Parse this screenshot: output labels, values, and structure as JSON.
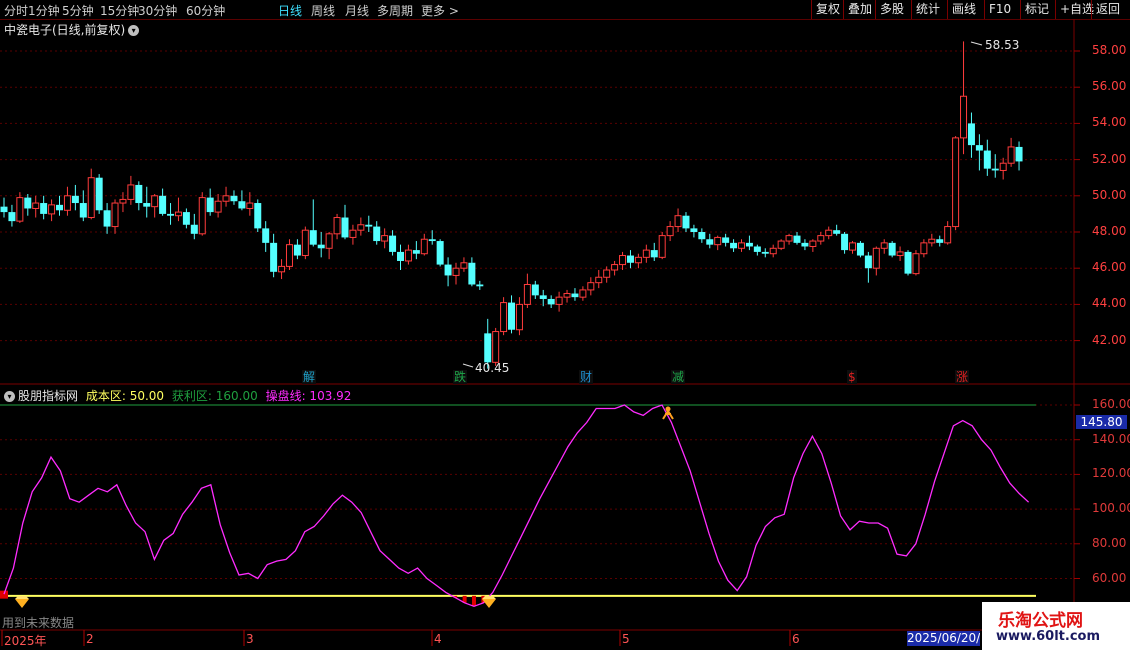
{
  "period_tabs": [
    {
      "label": "分时",
      "active": false
    },
    {
      "label": "1分钟",
      "active": false
    },
    {
      "label": "5分钟",
      "active": false
    },
    {
      "label": "15分钟",
      "active": false
    },
    {
      "label": "30分钟",
      "active": false
    },
    {
      "label": "60分钟",
      "active": false
    },
    {
      "label": "日线",
      "active": true
    },
    {
      "label": "周线",
      "active": false
    },
    {
      "label": "月线",
      "active": false
    },
    {
      "label": "多周期",
      "active": false
    },
    {
      "label": "更多 >",
      "active": false
    }
  ],
  "toolbar": [
    "复权",
    "叠加",
    "多股",
    "统计",
    "画线",
    "F10",
    "标记",
    "+自选",
    "返回"
  ],
  "chart_title": {
    "text": "中瓷电子(日线,前复权)",
    "icon": "chevron-down-icon"
  },
  "price_axis": [
    "58.00",
    "56.00",
    "54.00",
    "52.00",
    "50.00",
    "48.00",
    "46.00",
    "44.00",
    "42.00"
  ],
  "price_annotations": {
    "high": "58.53",
    "low": "40.45"
  },
  "markers": [
    {
      "text": "解",
      "color": "#1ea0c8"
    },
    {
      "text": "跌",
      "color": "#1ea84a"
    },
    {
      "text": "财",
      "color": "#1e8fd0"
    },
    {
      "text": "减",
      "color": "#1ea84a"
    },
    {
      "text": "$",
      "color": "#e02020"
    },
    {
      "text": "涨",
      "color": "#e02020"
    }
  ],
  "indicator": {
    "name": "股朋指标网",
    "cost_label": "成本区: 50.00",
    "profit_label": "获利区: 160.00",
    "line_label": "操盘线: 103.92",
    "current_value": "145.80"
  },
  "indicator_axis": [
    "160.00",
    "140.00",
    "120.00",
    "100.00",
    "80.00",
    "60.00"
  ],
  "x_axis": [
    "2025年",
    "2",
    "3",
    "4",
    "5",
    "6"
  ],
  "current_date": "2025/06/20/五",
  "future_note": "用到未来数据",
  "watermark": {
    "line1": "乐淘公式网",
    "line2": "www.60lt.com"
  },
  "colors": {
    "up": "#ff3c3c",
    "down": "#54ffff",
    "indicator": "#ff2cff",
    "cost_line": "#ffff60",
    "profit_line": "#1f9f3f"
  },
  "chart_data": [
    {
      "type": "candlestick",
      "title": "中瓷电子(日线,前复权)",
      "ylim": [
        40.5,
        59.5
      ],
      "y_ticks": [
        42,
        44,
        46,
        48,
        50,
        52,
        54,
        56,
        58
      ],
      "x_labels": [
        "2025年",
        "2",
        "3",
        "4",
        "5",
        "6"
      ],
      "ohlc": [
        [
          49.4,
          49.9,
          48.8,
          49.1
        ],
        [
          49.1,
          49.5,
          48.3,
          48.6
        ],
        [
          48.6,
          50.2,
          48.5,
          49.9
        ],
        [
          49.9,
          50.1,
          48.9,
          49.3
        ],
        [
          49.3,
          50.0,
          48.8,
          49.6
        ],
        [
          49.6,
          50.0,
          48.7,
          49.0
        ],
        [
          49.0,
          49.8,
          48.6,
          49.5
        ],
        [
          49.5,
          50.0,
          48.9,
          49.2
        ],
        [
          49.2,
          50.5,
          48.9,
          50.0
        ],
        [
          50.0,
          50.6,
          49.2,
          49.6
        ],
        [
          49.6,
          50.3,
          48.6,
          48.8
        ],
        [
          48.8,
          51.5,
          48.7,
          51.0
        ],
        [
          51.0,
          51.2,
          49.0,
          49.2
        ],
        [
          49.2,
          49.6,
          47.9,
          48.3
        ],
        [
          48.3,
          49.8,
          47.9,
          49.6
        ],
        [
          49.6,
          50.2,
          49.1,
          49.8
        ],
        [
          49.8,
          51.1,
          49.5,
          50.6
        ],
        [
          50.6,
          50.8,
          49.2,
          49.6
        ],
        [
          49.6,
          50.5,
          48.8,
          49.4
        ],
        [
          49.4,
          50.1,
          48.8,
          50.0
        ],
        [
          50.0,
          50.4,
          48.9,
          49.0
        ],
        [
          49.0,
          49.6,
          48.4,
          48.9
        ],
        [
          48.9,
          49.9,
          48.6,
          49.1
        ],
        [
          49.1,
          49.3,
          48.2,
          48.4
        ],
        [
          48.4,
          49.0,
          47.6,
          47.9
        ],
        [
          47.9,
          50.2,
          47.8,
          49.9
        ],
        [
          49.9,
          50.4,
          48.9,
          49.1
        ],
        [
          49.1,
          50.1,
          48.8,
          49.7
        ],
        [
          49.7,
          50.5,
          49.4,
          50.0
        ],
        [
          50.0,
          50.3,
          49.5,
          49.7
        ],
        [
          49.7,
          50.3,
          49.2,
          49.3
        ],
        [
          49.3,
          50.2,
          48.9,
          49.6
        ],
        [
          49.6,
          49.8,
          48.0,
          48.2
        ],
        [
          48.2,
          48.6,
          46.9,
          47.4
        ],
        [
          47.4,
          47.9,
          45.5,
          45.8
        ],
        [
          45.8,
          46.5,
          45.4,
          46.1
        ],
        [
          46.1,
          47.6,
          45.9,
          47.3
        ],
        [
          47.3,
          47.6,
          46.5,
          46.7
        ],
        [
          46.7,
          48.3,
          46.5,
          48.1
        ],
        [
          48.1,
          49.8,
          47.2,
          47.3
        ],
        [
          47.3,
          48.0,
          46.6,
          47.1
        ],
        [
          47.1,
          48.0,
          46.5,
          47.9
        ],
        [
          47.9,
          49.0,
          47.6,
          48.8
        ],
        [
          48.8,
          49.5,
          47.6,
          47.7
        ],
        [
          47.7,
          48.4,
          47.3,
          48.1
        ],
        [
          48.1,
          48.8,
          47.8,
          48.4
        ],
        [
          48.4,
          48.9,
          48.0,
          48.3
        ],
        [
          48.3,
          48.6,
          47.3,
          47.5
        ],
        [
          47.5,
          48.2,
          47.1,
          47.8
        ],
        [
          47.8,
          48.1,
          46.7,
          46.9
        ],
        [
          46.9,
          47.3,
          45.9,
          46.4
        ],
        [
          46.4,
          47.3,
          46.2,
          47.0
        ],
        [
          47.0,
          47.5,
          46.5,
          46.8
        ],
        [
          46.8,
          47.9,
          46.7,
          47.6
        ],
        [
          47.6,
          48.1,
          47.3,
          47.5
        ],
        [
          47.5,
          47.6,
          46.1,
          46.2
        ],
        [
          46.2,
          46.6,
          45.0,
          45.6
        ],
        [
          45.6,
          46.3,
          45.1,
          46.0
        ],
        [
          46.0,
          46.6,
          45.8,
          46.3
        ],
        [
          46.3,
          46.6,
          45.0,
          45.1
        ],
        [
          45.1,
          45.3,
          44.8,
          45.0
        ],
        [
          42.4,
          43.2,
          40.45,
          40.8
        ],
        [
          40.8,
          42.7,
          40.6,
          42.5
        ],
        [
          42.5,
          44.4,
          42.3,
          44.1
        ],
        [
          44.1,
          44.5,
          42.4,
          42.6
        ],
        [
          42.6,
          44.4,
          42.3,
          44.0
        ],
        [
          44.0,
          45.7,
          43.8,
          45.1
        ],
        [
          45.1,
          45.3,
          44.3,
          44.5
        ],
        [
          44.5,
          44.8,
          43.9,
          44.3
        ],
        [
          44.3,
          44.5,
          43.8,
          44.0
        ],
        [
          44.0,
          44.7,
          43.6,
          44.4
        ],
        [
          44.4,
          44.8,
          44.1,
          44.6
        ],
        [
          44.6,
          44.9,
          44.2,
          44.4
        ],
        [
          44.4,
          45.0,
          44.2,
          44.8
        ],
        [
          44.8,
          45.5,
          44.5,
          45.2
        ],
        [
          45.2,
          45.9,
          44.9,
          45.5
        ],
        [
          45.5,
          46.1,
          45.2,
          45.9
        ],
        [
          45.9,
          46.4,
          45.6,
          46.2
        ],
        [
          46.2,
          46.9,
          45.9,
          46.7
        ],
        [
          46.7,
          47.0,
          46.0,
          46.3
        ],
        [
          46.3,
          46.8,
          46.0,
          46.6
        ],
        [
          46.6,
          47.3,
          46.3,
          47.0
        ],
        [
          47.0,
          47.4,
          46.4,
          46.6
        ],
        [
          46.6,
          48.0,
          46.5,
          47.8
        ],
        [
          47.8,
          48.6,
          47.5,
          48.3
        ],
        [
          48.3,
          49.3,
          48.0,
          48.9
        ],
        [
          48.9,
          49.1,
          48.0,
          48.2
        ],
        [
          48.2,
          48.4,
          47.7,
          48.0
        ],
        [
          48.0,
          48.2,
          47.4,
          47.6
        ],
        [
          47.6,
          47.9,
          47.1,
          47.3
        ],
        [
          47.3,
          47.8,
          47.0,
          47.7
        ],
        [
          47.7,
          47.9,
          47.2,
          47.4
        ],
        [
          47.4,
          47.6,
          46.9,
          47.1
        ],
        [
          47.1,
          47.6,
          46.9,
          47.4
        ],
        [
          47.4,
          47.8,
          47.0,
          47.2
        ],
        [
          47.2,
          47.3,
          46.7,
          46.9
        ],
        [
          46.9,
          47.1,
          46.6,
          46.8
        ],
        [
          46.8,
          47.3,
          46.6,
          47.1
        ],
        [
          47.1,
          47.6,
          47.0,
          47.5
        ],
        [
          47.5,
          47.9,
          47.3,
          47.8
        ],
        [
          47.8,
          48.0,
          47.3,
          47.4
        ],
        [
          47.4,
          47.6,
          47.0,
          47.2
        ],
        [
          47.2,
          47.6,
          46.9,
          47.5
        ],
        [
          47.5,
          48.0,
          47.3,
          47.8
        ],
        [
          47.8,
          48.3,
          47.6,
          48.1
        ],
        [
          48.1,
          48.4,
          47.8,
          47.9
        ],
        [
          47.9,
          48.0,
          46.8,
          47.0
        ],
        [
          47.0,
          47.5,
          46.8,
          47.4
        ],
        [
          47.4,
          47.5,
          46.6,
          46.7
        ],
        [
          46.7,
          46.9,
          45.2,
          46.0
        ],
        [
          46.0,
          47.2,
          45.6,
          47.1
        ],
        [
          47.1,
          47.6,
          46.8,
          47.4
        ],
        [
          47.4,
          47.5,
          46.6,
          46.7
        ],
        [
          46.7,
          47.2,
          46.4,
          46.9
        ],
        [
          46.9,
          47.0,
          45.6,
          45.7
        ],
        [
          45.7,
          47.0,
          45.6,
          46.8
        ],
        [
          46.8,
          47.6,
          46.6,
          47.4
        ],
        [
          47.4,
          47.9,
          47.2,
          47.6
        ],
        [
          47.6,
          47.8,
          47.2,
          47.4
        ],
        [
          47.4,
          48.6,
          47.3,
          48.3
        ],
        [
          48.3,
          53.3,
          48.1,
          53.2
        ],
        [
          53.2,
          58.53,
          52.3,
          55.5
        ],
        [
          54.0,
          54.6,
          52.1,
          52.8
        ],
        [
          52.8,
          53.4,
          51.4,
          52.5
        ],
        [
          52.5,
          53.1,
          51.1,
          51.5
        ],
        [
          51.5,
          52.3,
          51.0,
          51.4
        ],
        [
          51.4,
          52.1,
          50.9,
          51.8
        ],
        [
          51.8,
          53.2,
          51.6,
          52.7
        ],
        [
          52.7,
          53.0,
          51.4,
          51.9
        ]
      ]
    },
    {
      "type": "line",
      "title": "股朋指标网",
      "ylim": [
        48,
        163
      ],
      "y_ticks": [
        60,
        80,
        100,
        120,
        140,
        160
      ],
      "series": [
        {
          "name": "操盘线",
          "values": [
            51,
            66,
            92,
            110,
            118,
            130,
            122,
            106,
            104,
            108,
            112,
            110,
            114,
            102,
            92,
            87,
            71,
            82,
            86,
            97,
            104,
            112,
            114,
            91,
            75,
            62,
            63,
            60,
            68,
            70,
            71,
            76,
            87,
            90,
            96,
            103,
            108,
            104,
            98,
            87,
            76,
            71,
            66,
            63,
            66,
            60,
            56,
            52,
            49,
            46,
            44,
            46,
            52,
            62,
            73,
            84,
            95,
            106,
            116,
            126,
            136,
            144,
            150,
            158,
            158,
            158,
            160,
            156,
            154,
            158,
            160,
            150,
            136,
            122,
            104,
            86,
            70,
            59,
            53,
            61,
            79,
            90,
            95,
            97,
            118,
            132,
            142,
            132,
            115,
            96,
            88,
            93,
            92,
            92,
            89,
            74,
            73,
            80,
            97,
            116,
            132,
            148,
            151,
            148,
            140,
            134,
            124,
            115,
            109,
            104
          ],
          "color": "#ff2cff"
        },
        {
          "name": "成本区",
          "values": [
            50
          ],
          "color": "#ffff60"
        },
        {
          "name": "获利区",
          "values": [
            160
          ],
          "color": "#1f9f3f"
        }
      ]
    }
  ]
}
